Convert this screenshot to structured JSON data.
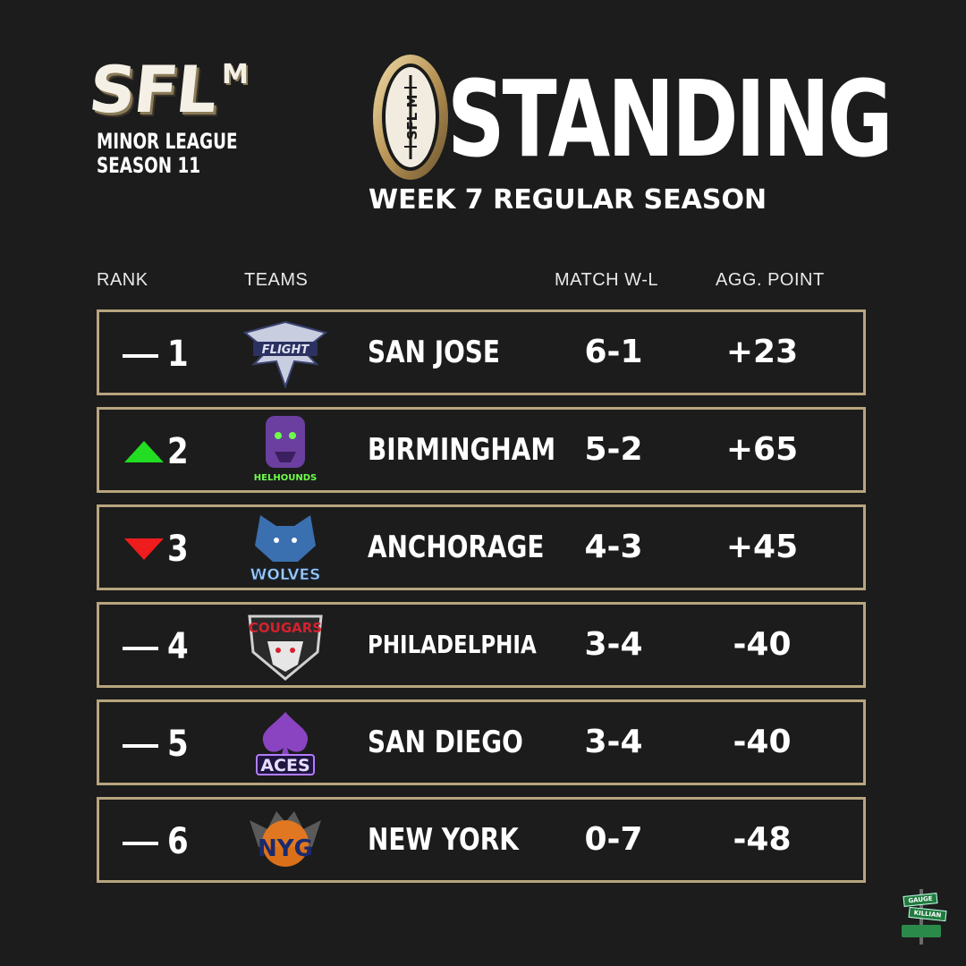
{
  "brand": {
    "logo_text": "SFL",
    "logo_sup": "M",
    "subtitle_line1": "MINOR LEAGUE",
    "subtitle_line2": "SEASON 11",
    "football_text": "SFL M"
  },
  "header": {
    "title": "STANDING",
    "subtitle": "WEEK 7 REGULAR SEASON"
  },
  "table": {
    "columns": [
      "RANK",
      "TEAMS",
      "MATCH W-L",
      "AGG. POINT"
    ],
    "rows": [
      {
        "rank": "1",
        "movement": "none",
        "team": "SAN JOSE",
        "wl": "6-1",
        "agg": "+23",
        "logo_text": "FLIGHT",
        "logo_icon": "eagle-icon"
      },
      {
        "rank": "2",
        "movement": "up",
        "team": "BIRMINGHAM",
        "wl": "5-2",
        "agg": "+65",
        "logo_text": "HELHOUNDS",
        "logo_icon": "hellhound-icon"
      },
      {
        "rank": "3",
        "movement": "down",
        "team": "ANCHORAGE",
        "wl": "4-3",
        "agg": "+45",
        "logo_text": "WOLVES",
        "logo_icon": "wolf-icon"
      },
      {
        "rank": "4",
        "movement": "none",
        "team": "PHILADELPHIA",
        "wl": "3-4",
        "agg": "-40",
        "logo_text": "COUGARS",
        "logo_icon": "cougar-icon"
      },
      {
        "rank": "5",
        "movement": "none",
        "team": "SAN DIEGO",
        "wl": "3-4",
        "agg": "-40",
        "logo_text": "ACES",
        "logo_icon": "ace-spade-icon"
      },
      {
        "rank": "6",
        "movement": "none",
        "team": "NEW YORK",
        "wl": "0-7",
        "agg": "-48",
        "logo_text": "NYG",
        "logo_icon": "gargoyle-icon"
      }
    ]
  },
  "footer": {
    "sign1": "GAUGE",
    "sign2": "KILLIAN"
  },
  "colors": {
    "background": "#1c1c1c",
    "border_gold": "#b8a57e",
    "up": "#22dd22",
    "down": "#ee1c1c"
  }
}
